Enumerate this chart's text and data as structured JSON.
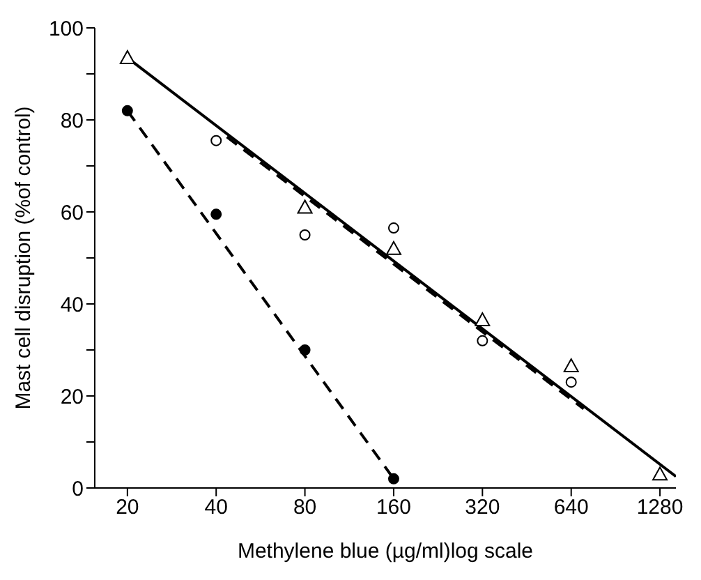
{
  "chart_data": {
    "type": "scatter",
    "xlabel": "Methylene blue (µg/ml)log scale",
    "ylabel": "Mast cell disruption (%of control)",
    "x": [
      20,
      40,
      80,
      160
    ],
    "series": [
      {
        "color": "#000000",
        "marker": "circle",
        "values": [
          82,
          59.5,
          30,
          2
        ]
      },
      {
        "color": "#ffffff",
        "marker": "circle",
        "x": [
          40,
          80,
          160,
          320,
          640
        ],
        "values": [
          75.5,
          55,
          56.5,
          32,
          23
        ]
      },
      {
        "color": "#ffffff",
        "marker": "triangle",
        "x": [
          20,
          80,
          160,
          320,
          640,
          1280
        ],
        "values": [
          93.5,
          61,
          52,
          36.5,
          26.5,
          3
        ]
      },
      {
        "type": "line",
        "color": "#000000",
        "marker": "none",
        "line_style": "dashed",
        "x": [
          20,
          160
        ],
        "values": [
          82,
          2
        ]
      },
      {
        "type": "line",
        "color": "#000000",
        "marker": "none",
        "line_style": "dashed",
        "x": [
          43.5,
          705
        ],
        "values": [
          76.3,
          17.2
        ]
      },
      {
        "type": "line",
        "color": "#000000",
        "marker": "none",
        "line_style": "solid",
        "x": [
          20,
          1450
        ],
        "values": [
          93.5,
          2.5
        ]
      }
    ],
    "log": "x",
    "xlim": [
      15.5,
      1450
    ],
    "xticks": [
      20,
      40,
      80,
      160,
      320,
      640,
      1280
    ],
    "ylim": [
      0,
      100
    ],
    "yticks": [
      0,
      {
        "value": 10,
        "label": null
      },
      20,
      {
        "value": 30,
        "label": null
      },
      40,
      {
        "value": 50,
        "label": null
      },
      60,
      {
        "value": 70,
        "label": null
      },
      80,
      {
        "value": 90,
        "label": null
      },
      100
    ],
    "grid": false
  }
}
